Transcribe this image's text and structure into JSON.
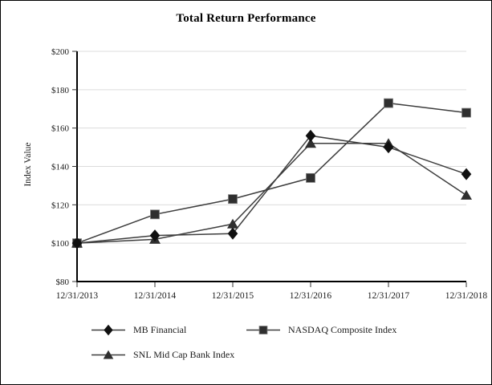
{
  "chart_data": {
    "type": "line",
    "title": "Total Return Performance",
    "ylabel": "Index Value",
    "categories": [
      "12/31/2013",
      "12/31/2014",
      "12/31/2015",
      "12/31/2016",
      "12/31/2017",
      "12/31/2018"
    ],
    "ylim": [
      80,
      200
    ],
    "ytick_step": 20,
    "ytick_prefix": "$",
    "grid": true,
    "legend_position": "bottom",
    "series": [
      {
        "name": "MB Financial",
        "marker": "diamond",
        "color": "#101010",
        "values": [
          100,
          104,
          105,
          156,
          150,
          136
        ]
      },
      {
        "name": "NASDAQ Composite Index",
        "marker": "square",
        "color": "#2f2f2f",
        "values": [
          100,
          115,
          123,
          134,
          173,
          168
        ]
      },
      {
        "name": "SNL Mid Cap Bank Index",
        "marker": "triangle",
        "color": "#2f2f2f",
        "values": [
          100,
          102,
          110,
          152,
          152,
          125
        ]
      }
    ]
  },
  "colors": {
    "grid": "#dcdcdc",
    "axis": "#000000",
    "tick": "#333333",
    "line": "#3d3d3d",
    "text": "#1a1a1a",
    "background": "#ffffff",
    "border": "#000000"
  }
}
